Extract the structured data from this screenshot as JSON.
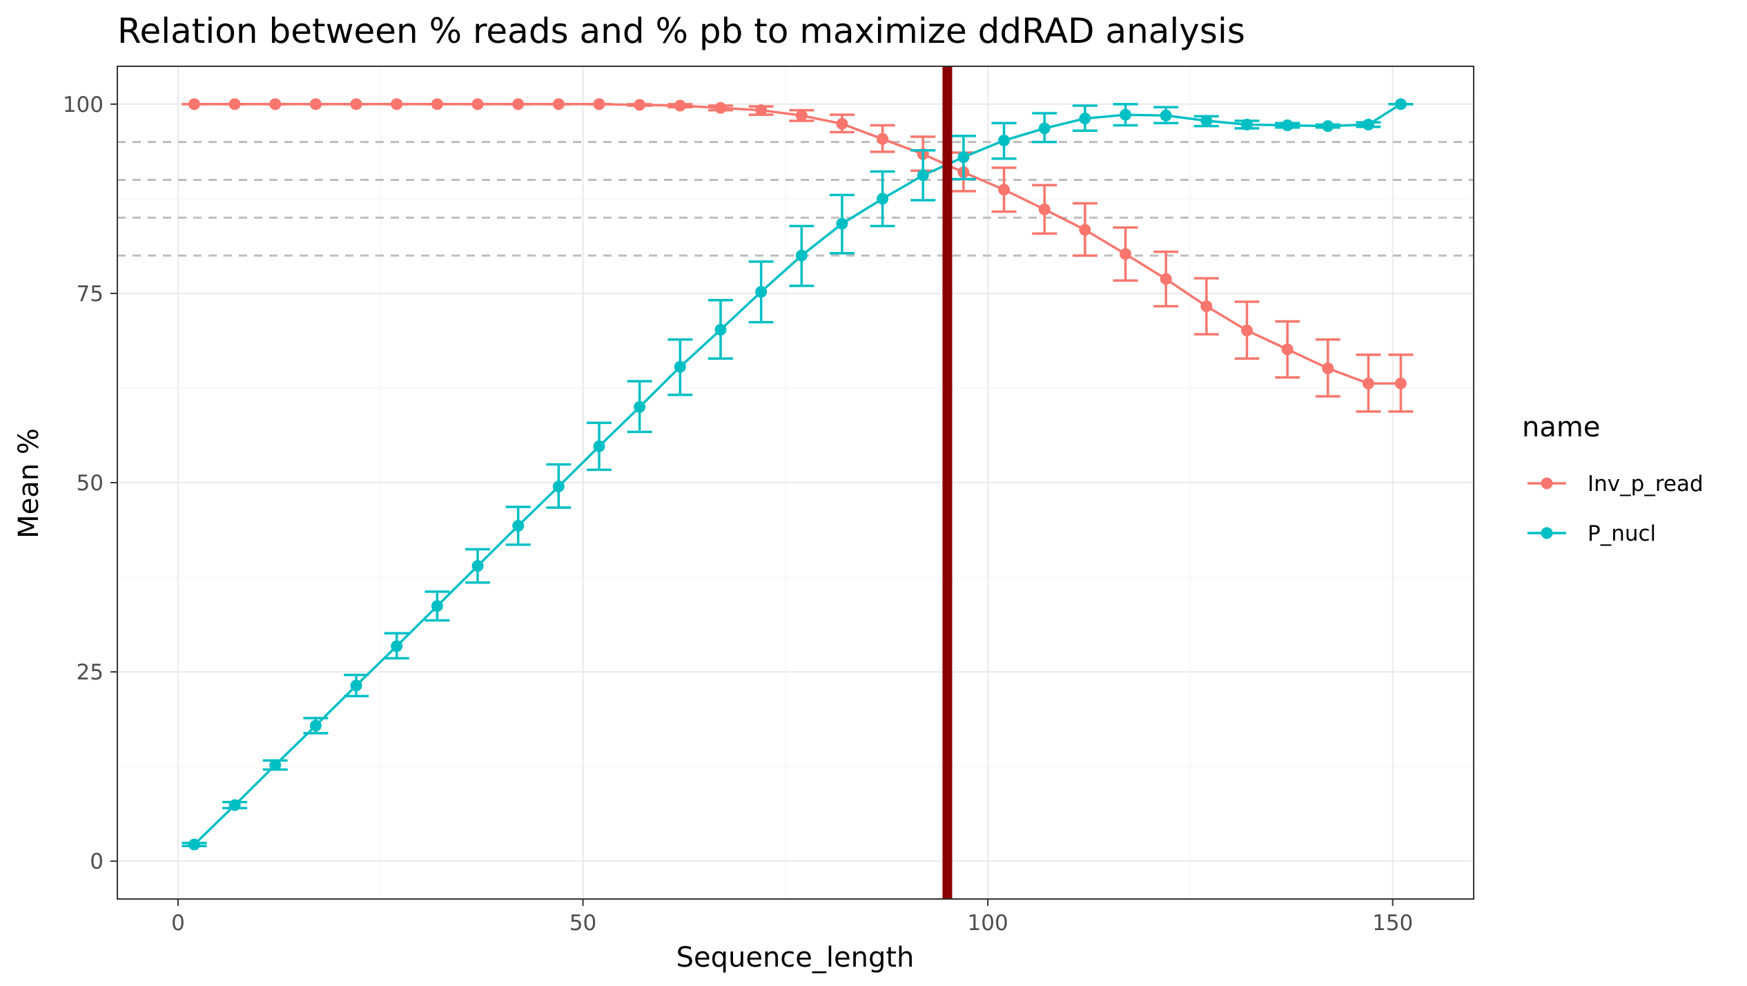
{
  "chart_data": {
    "type": "line",
    "title": "Relation between % reads and % pb to maximize ddRAD analysis",
    "xlabel": "Sequence_length",
    "ylabel": "Mean %",
    "xlim": [
      -7.5,
      160
    ],
    "ylim": [
      -5,
      105
    ],
    "xticks": [
      0,
      50,
      100,
      150
    ],
    "yticks": [
      0,
      25,
      50,
      75,
      100
    ],
    "grid": true,
    "legend_title": "name",
    "legend_position": "right",
    "vline": {
      "x": 95,
      "color": "#8b0000"
    },
    "hlines": [
      {
        "y": 80,
        "style": "dashed",
        "color": "#bdbdbd"
      },
      {
        "y": 85,
        "style": "dashed",
        "color": "#bdbdbd"
      },
      {
        "y": 90,
        "style": "dashed",
        "color": "#bdbdbd"
      },
      {
        "y": 95,
        "style": "dashed",
        "color": "#bdbdbd"
      }
    ],
    "x": [
      2,
      7,
      12,
      17,
      22,
      27,
      32,
      37,
      42,
      47,
      52,
      57,
      62,
      67,
      72,
      77,
      82,
      87,
      92,
      97,
      102,
      107,
      112,
      117,
      122,
      127,
      132,
      137,
      142,
      147,
      151
    ],
    "series": [
      {
        "name": "Inv_p_read",
        "color": "#f8766d",
        "values": [
          100,
          100,
          100,
          100,
          100,
          100,
          100,
          100,
          100,
          100,
          100,
          99.9,
          99.8,
          99.5,
          99.2,
          98.5,
          97.4,
          95.4,
          93.4,
          91.0,
          88.7,
          86.1,
          83.4,
          80.2,
          76.9,
          73.3,
          70.1,
          67.6,
          65.1,
          63.1,
          63.1
        ],
        "err_low": [
          100,
          100,
          100,
          100,
          100,
          100,
          100,
          100,
          100,
          100,
          100,
          99.8,
          99.6,
          99.2,
          98.6,
          97.8,
          96.3,
          93.7,
          91.2,
          88.5,
          85.8,
          82.9,
          80.0,
          76.7,
          73.3,
          69.6,
          66.4,
          63.9,
          61.4,
          59.4,
          59.4
        ],
        "err_high": [
          100,
          100,
          100,
          100,
          100,
          100,
          100,
          100,
          100,
          100,
          100,
          100,
          100,
          99.8,
          99.7,
          99.2,
          98.6,
          97.2,
          95.7,
          93.6,
          91.6,
          89.3,
          86.9,
          83.7,
          80.5,
          77.0,
          73.9,
          71.3,
          68.9,
          66.9,
          66.9
        ]
      },
      {
        "name": "P_nucl",
        "color": "#00bfc4",
        "values": [
          2.2,
          7.4,
          12.7,
          17.9,
          23.2,
          28.4,
          33.7,
          39.0,
          44.3,
          49.5,
          54.8,
          60.0,
          65.3,
          70.2,
          75.2,
          80.0,
          84.2,
          87.5,
          90.6,
          93.0,
          95.2,
          96.8,
          98.1,
          98.6,
          98.5,
          97.8,
          97.3,
          97.2,
          97.1,
          97.3,
          100
        ],
        "err_low": [
          2.0,
          7.0,
          12.1,
          16.9,
          21.8,
          26.8,
          31.8,
          36.8,
          41.8,
          46.7,
          51.7,
          56.7,
          61.6,
          66.4,
          71.2,
          76.0,
          80.3,
          83.9,
          87.3,
          90.1,
          92.8,
          95.0,
          96.5,
          97.2,
          97.5,
          97.1,
          96.8,
          96.9,
          96.9,
          97.0,
          100
        ],
        "err_high": [
          2.4,
          7.8,
          13.3,
          18.9,
          24.6,
          30.1,
          35.6,
          41.2,
          46.8,
          52.4,
          57.9,
          63.4,
          68.9,
          74.1,
          79.2,
          83.9,
          88.0,
          91.1,
          93.9,
          95.8,
          97.5,
          98.8,
          99.8,
          100,
          99.6,
          98.4,
          97.8,
          97.5,
          97.3,
          97.6,
          100
        ]
      }
    ]
  }
}
